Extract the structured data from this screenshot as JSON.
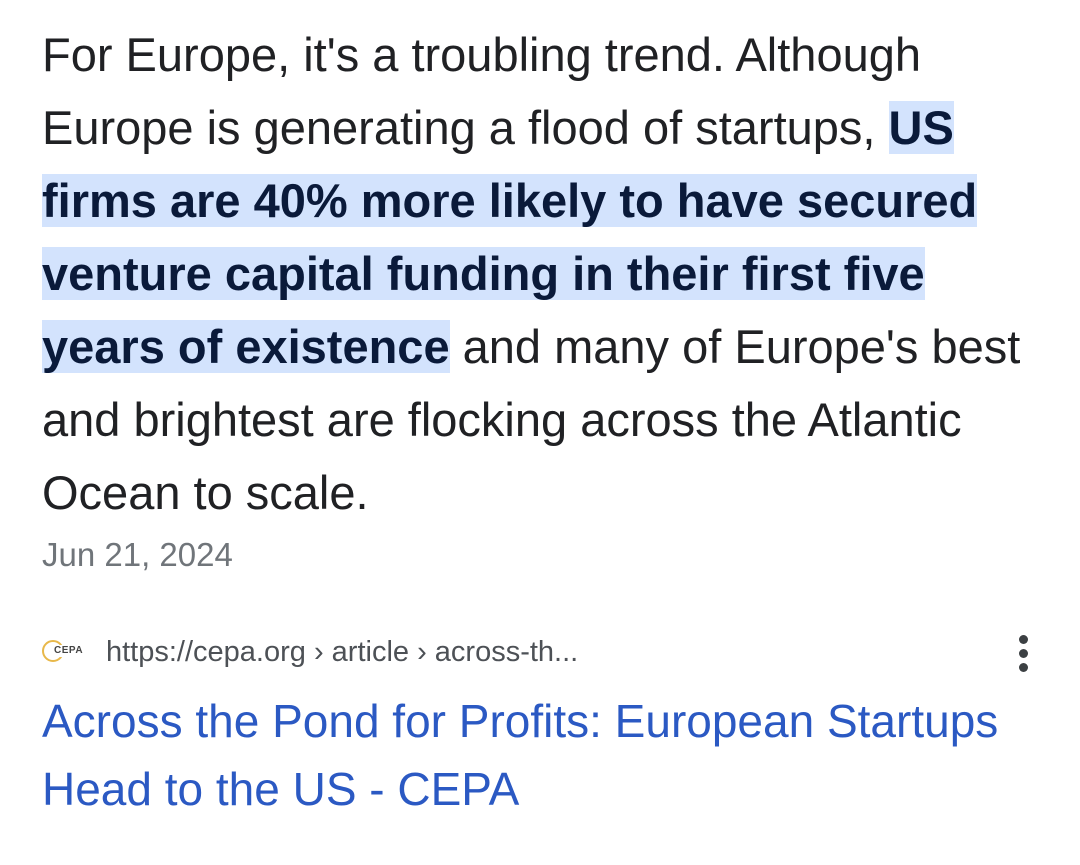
{
  "snippet": {
    "text_before": "For Europe, it's a troubling trend. Although Europe is generating a flood of startups, ",
    "highlight": "US firms are 40% more likely to have secured venture capital funding in their first five years of existence",
    "text_after": " and many of Europe's best and brightest are flocking across the Atlantic Ocean to scale."
  },
  "date": "Jun 21, 2024",
  "source": {
    "favicon_text": "CEPA",
    "url": "https://cepa.org › article › across-th..."
  },
  "result": {
    "title": "Across the Pond for Profits: European Startups Head to the US - CEPA"
  },
  "colors": {
    "highlight_bg": "#d3e3fd",
    "link": "#2b59c3",
    "muted": "#70757a"
  },
  "icons": {
    "more": "more-vert-icon",
    "favicon": "cepa-favicon-icon"
  }
}
